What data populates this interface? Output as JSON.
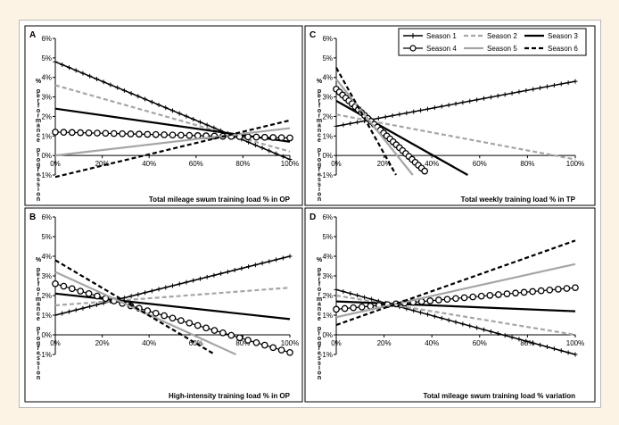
{
  "legend": [
    {
      "name": "Season 1",
      "style": "cross",
      "color": "#000000"
    },
    {
      "name": "Season 2",
      "style": "dashed",
      "color": "#a6a6a6"
    },
    {
      "name": "Season 3",
      "style": "solid-thick",
      "color": "#000000"
    },
    {
      "name": "Season 4",
      "style": "circle",
      "color": "#000000"
    },
    {
      "name": "Season 5",
      "style": "solid",
      "color": "#a6a6a6"
    },
    {
      "name": "Season 6",
      "style": "dashed",
      "color": "#000000"
    }
  ],
  "chart_data": [
    {
      "type": "line",
      "panel_label": "A",
      "xlabel": "Total mileage swum training load % in OP",
      "ylabel": "% performance progression",
      "xlim": [
        0,
        100
      ],
      "ylim": [
        -1,
        6
      ],
      "xticks": [
        "0%",
        "20%",
        "40%",
        "60%",
        "80%",
        "100%"
      ],
      "yticks": [
        "-1%",
        "0%",
        "1%",
        "2%",
        "3%",
        "4%",
        "5%",
        "6%"
      ],
      "series": [
        {
          "name": "Season 1",
          "x": [
            0,
            100
          ],
          "y": [
            4.8,
            -0.2
          ]
        },
        {
          "name": "Season 2",
          "x": [
            0,
            100
          ],
          "y": [
            3.6,
            0.2
          ]
        },
        {
          "name": "Season 3",
          "x": [
            0,
            100
          ],
          "y": [
            2.4,
            0.7
          ]
        },
        {
          "name": "Season 4",
          "x": [
            0,
            100
          ],
          "y": [
            1.2,
            0.9
          ]
        },
        {
          "name": "Season 5",
          "x": [
            0,
            100
          ],
          "y": [
            0.0,
            1.4
          ]
        },
        {
          "name": "Season 6",
          "x": [
            0,
            100
          ],
          "y": [
            -1.1,
            1.8
          ]
        }
      ]
    },
    {
      "type": "line",
      "panel_label": "C",
      "xlabel": "Total weekly training load % in TP",
      "ylabel": "% performance progression",
      "xlim": [
        0,
        100
      ],
      "ylim": [
        -1,
        6
      ],
      "xticks": [
        "0%",
        "20%",
        "40%",
        "60%",
        "80%",
        "100%"
      ],
      "yticks": [
        "-1%",
        "0%",
        "1%",
        "2%",
        "3%",
        "4%",
        "5%",
        "6%"
      ],
      "series": [
        {
          "name": "Season 1",
          "x": [
            0,
            100
          ],
          "y": [
            1.5,
            3.8
          ]
        },
        {
          "name": "Season 2",
          "x": [
            0,
            100
          ],
          "y": [
            2.1,
            -0.2
          ]
        },
        {
          "name": "Season 3",
          "x": [
            0,
            55
          ],
          "y": [
            2.8,
            -1.0
          ]
        },
        {
          "name": "Season 4",
          "x": [
            0,
            37
          ],
          "y": [
            3.4,
            -0.8
          ]
        },
        {
          "name": "Season 5",
          "x": [
            0,
            32
          ],
          "y": [
            3.9,
            -1.0
          ]
        },
        {
          "name": "Season 6",
          "x": [
            0,
            25
          ],
          "y": [
            4.5,
            -1.0
          ]
        }
      ]
    },
    {
      "type": "line",
      "panel_label": "B",
      "xlabel": "High-intensity training load % in OP",
      "ylabel": "% performance progression",
      "xlim": [
        0,
        100
      ],
      "ylim": [
        -1,
        6
      ],
      "xticks": [
        "0%",
        "20%",
        "40%",
        "60%",
        "80%",
        "100%"
      ],
      "yticks": [
        "-1%",
        "0%",
        "1%",
        "2%",
        "3%",
        "4%",
        "5%",
        "6%"
      ],
      "series": [
        {
          "name": "Season 1",
          "x": [
            0,
            100
          ],
          "y": [
            1.0,
            4.0
          ]
        },
        {
          "name": "Season 2",
          "x": [
            0,
            100
          ],
          "y": [
            1.5,
            2.4
          ]
        },
        {
          "name": "Season 3",
          "x": [
            0,
            100
          ],
          "y": [
            2.1,
            0.8
          ]
        },
        {
          "name": "Season 4",
          "x": [
            0,
            100
          ],
          "y": [
            2.6,
            -0.9
          ]
        },
        {
          "name": "Season 5",
          "x": [
            0,
            77
          ],
          "y": [
            3.2,
            -1.0
          ]
        },
        {
          "name": "Season 6",
          "x": [
            0,
            68
          ],
          "y": [
            3.8,
            -1.0
          ]
        }
      ]
    },
    {
      "type": "line",
      "panel_label": "D",
      "xlabel": "Total mileage swum training load % variation",
      "ylabel": "% performance progression",
      "xlim": [
        0,
        100
      ],
      "ylim": [
        -1,
        6
      ],
      "xticks": [
        "0%",
        "20%",
        "40%",
        "60%",
        "80%",
        "100%"
      ],
      "yticks": [
        "-1%",
        "0%",
        "1%",
        "2%",
        "3%",
        "4%",
        "5%",
        "6%"
      ],
      "series": [
        {
          "name": "Season 1",
          "x": [
            0,
            100
          ],
          "y": [
            2.3,
            -1.0
          ]
        },
        {
          "name": "Season 2",
          "x": [
            0,
            100
          ],
          "y": [
            2.0,
            0.0
          ]
        },
        {
          "name": "Season 3",
          "x": [
            0,
            100
          ],
          "y": [
            1.7,
            1.2
          ]
        },
        {
          "name": "Season 4",
          "x": [
            0,
            100
          ],
          "y": [
            1.3,
            2.4
          ]
        },
        {
          "name": "Season 5",
          "x": [
            0,
            100
          ],
          "y": [
            0.9,
            3.6
          ]
        },
        {
          "name": "Season 6",
          "x": [
            0,
            100
          ],
          "y": [
            0.5,
            4.8
          ]
        }
      ]
    }
  ]
}
